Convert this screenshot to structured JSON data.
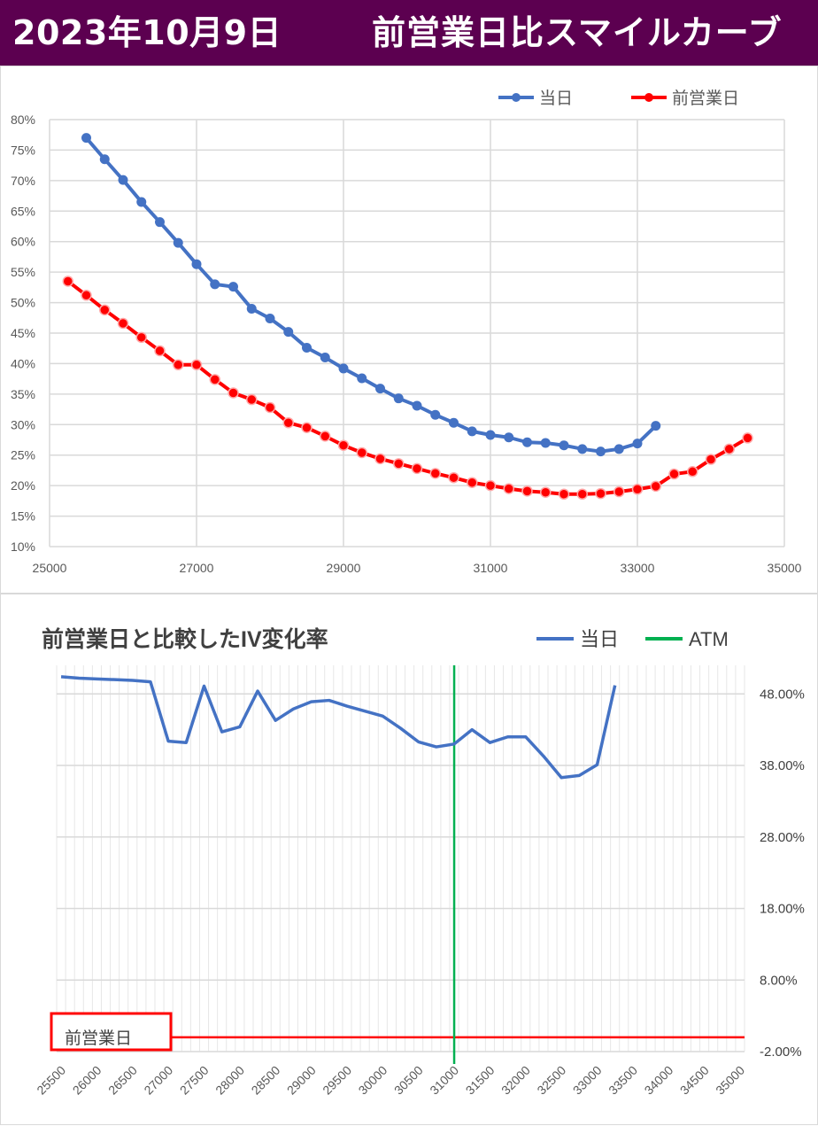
{
  "header": {
    "date": "2023年10月9日",
    "title": "前営業日比スマイルカーブ"
  },
  "colors": {
    "header_bg": "#5c0050",
    "today": "#4472c4",
    "prev": "#ff0000",
    "atm": "#00b050",
    "iv_line": "#4472c4",
    "prev_box": "#ff0000"
  },
  "chart_data": [
    {
      "type": "line",
      "title": "",
      "xlabel": "",
      "ylabel": "",
      "xlim": [
        25000,
        35000
      ],
      "ylim": [
        0.1,
        0.8
      ],
      "x_ticks": [
        "25000",
        "27000",
        "29000",
        "31000",
        "33000",
        "35000"
      ],
      "y_ticks": [
        "10%",
        "15%",
        "20%",
        "25%",
        "30%",
        "35%",
        "40%",
        "45%",
        "50%",
        "55%",
        "60%",
        "65%",
        "70%",
        "75%",
        "80%"
      ],
      "grid": true,
      "legend_position": "top-right",
      "series": [
        {
          "name": "当日",
          "color": "#4472c4",
          "x": [
            25500,
            25750,
            26000,
            26250,
            26500,
            26750,
            27000,
            27250,
            27500,
            27750,
            28000,
            28250,
            28500,
            28750,
            29000,
            29250,
            29500,
            29750,
            30000,
            30250,
            30500,
            30750,
            31000,
            31250,
            31500,
            31750,
            32000,
            32250,
            32500,
            32750,
            33000,
            33250
          ],
          "y": [
            0.77,
            0.735,
            0.701,
            0.665,
            0.632,
            0.598,
            0.563,
            0.53,
            0.526,
            0.49,
            0.474,
            0.452,
            0.426,
            0.41,
            0.392,
            0.376,
            0.359,
            0.343,
            0.331,
            0.316,
            0.303,
            0.289,
            0.283,
            0.279,
            0.271,
            0.27,
            0.266,
            0.26,
            0.256,
            0.26,
            0.269,
            0.298
          ]
        },
        {
          "name": "前営業日",
          "color": "#ff0000",
          "x": [
            25250,
            25500,
            25750,
            26000,
            26250,
            26500,
            26750,
            27000,
            27250,
            27500,
            27750,
            28000,
            28250,
            28500,
            28750,
            29000,
            29250,
            29500,
            29750,
            30000,
            30250,
            30500,
            30750,
            31000,
            31250,
            31500,
            31750,
            32000,
            32250,
            32500,
            32750,
            33000,
            33250,
            33500,
            33750,
            34000,
            34250,
            34500
          ],
          "y": [
            0.535,
            0.512,
            0.488,
            0.466,
            0.443,
            0.421,
            0.398,
            0.398,
            0.374,
            0.352,
            0.341,
            0.328,
            0.303,
            0.295,
            0.281,
            0.266,
            0.254,
            0.244,
            0.236,
            0.228,
            0.22,
            0.213,
            0.205,
            0.2,
            0.195,
            0.191,
            0.189,
            0.186,
            0.186,
            0.187,
            0.19,
            0.194,
            0.199,
            0.219,
            0.223,
            0.243,
            0.26,
            0.278
          ]
        }
      ]
    },
    {
      "type": "line",
      "title": "前営業日と比較したIV変化率",
      "xlabel": "",
      "ylabel": "",
      "categories": [
        "25500",
        "25625",
        "25750",
        "25875",
        "26000",
        "26125",
        "26250",
        "26375",
        "26500",
        "26625",
        "26750",
        "26875",
        "27000",
        "27125",
        "27250",
        "27375",
        "27500",
        "27625",
        "27750",
        "27875",
        "28000",
        "28125",
        "28250",
        "28375",
        "28500",
        "28625",
        "28750",
        "28875",
        "29000",
        "29125",
        "29250",
        "29375",
        "29500",
        "29625",
        "29750",
        "29875",
        "30000",
        "30125",
        "30250",
        "30375",
        "30500",
        "30625",
        "30750",
        "30875",
        "31000",
        "31125",
        "31250",
        "31375",
        "31500",
        "31625",
        "31750",
        "31875",
        "32000",
        "32125",
        "32250",
        "32375",
        "32500",
        "32625",
        "32750",
        "32875",
        "33000",
        "33125",
        "33250",
        "33375",
        "33500",
        "33625",
        "33750",
        "33875",
        "34000",
        "34125",
        "34250",
        "34375",
        "34500",
        "34625",
        "34750",
        "34875",
        "35000"
      ],
      "x_tick_labels": [
        "25500",
        "26000",
        "26500",
        "27000",
        "27500",
        "28000",
        "28500",
        "29000",
        "29500",
        "30000",
        "30500",
        "31000",
        "31500",
        "32000",
        "32500",
        "33000",
        "33500",
        "34000",
        "34500",
        "35000"
      ],
      "y_ticks": [
        "-2.00%",
        "8.00%",
        "18.00%",
        "28.00%",
        "38.00%",
        "48.00%"
      ],
      "ylim": [
        -0.02,
        0.52
      ],
      "grid": true,
      "legend_position": "top-right",
      "atm_strike": "31000",
      "prev_day_label": "前営業日",
      "series": [
        {
          "name": "当日",
          "color": "#4472c4",
          "x": [
            25500,
            25750,
            26000,
            26250,
            26500,
            26750,
            27000,
            27250,
            27500,
            27750,
            28000,
            28250,
            28500,
            28750,
            29000,
            29250,
            29500,
            29750,
            30000,
            30250,
            30500,
            30750,
            31000,
            31250,
            31500,
            31750,
            32000,
            32250,
            32500,
            32750,
            33000,
            33250
          ],
          "y": [
            0.504,
            0.502,
            0.501,
            0.5,
            0.499,
            0.497,
            0.414,
            0.412,
            0.491,
            0.427,
            0.434,
            0.484,
            0.443,
            0.459,
            0.469,
            0.471,
            0.463,
            0.456,
            0.449,
            0.432,
            0.413,
            0.406,
            0.41,
            0.43,
            0.412,
            0.42,
            0.42,
            0.393,
            0.363,
            0.366,
            0.381,
            0.492
          ]
        },
        {
          "name": "ATM",
          "color": "#00b050",
          "x": [
            31000
          ]
        }
      ]
    }
  ]
}
